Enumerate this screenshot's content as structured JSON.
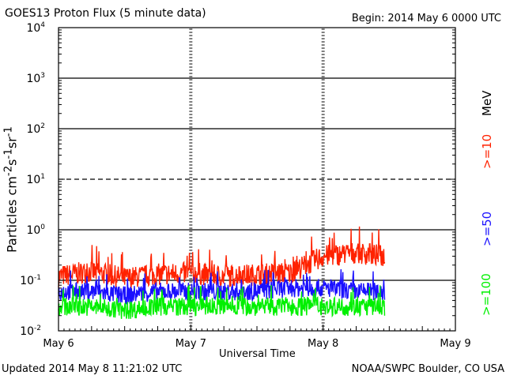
{
  "header": {
    "title": "GOES13 Proton Flux (5 minute data)",
    "begin": "Begin: 2014 May 6 0000 UTC"
  },
  "footer": {
    "updated": "Updated 2014 May  8 11:21:02 UTC",
    "credit": "NOAA/SWPC Boulder, CO USA"
  },
  "colors": {
    "p10": "#ff2200",
    "p50": "#1a10ff",
    "p100": "#00f000",
    "axis": "#000000"
  },
  "chart_data": {
    "type": "line",
    "title": "GOES13 Proton Flux (5 minute data)",
    "xlabel": "Universal Time",
    "ylabel": "Particles cm-2s-1sr-1",
    "yscale": "log",
    "ylim": [
      0.01,
      10000
    ],
    "xlim_days": [
      0,
      3
    ],
    "x_ticks": [
      "May 6",
      "May 7",
      "May 8",
      "May 9"
    ],
    "y_ticks": [
      "10^-2",
      "10^-1",
      "10^0",
      "10^1",
      "10^2",
      "10^3",
      "10^4"
    ],
    "grid": "horizontal at each decade (10^1 dashed)",
    "legend": "right side, rotated",
    "energy_unit": "MeV",
    "series": [
      {
        "name": ">=10",
        "color": "#ff2200",
        "x": [
          "May 6 00:00",
          "May 6 06:00",
          "May 6 12:00",
          "May 6 18:00",
          "May 7 00:00",
          "May 7 06:00",
          "May 7 12:00",
          "May 7 18:00",
          "May 8 00:00",
          "May 8 06:00",
          "May 8 11:15"
        ],
        "values": [
          0.12,
          0.15,
          0.11,
          0.13,
          0.14,
          0.12,
          0.13,
          0.14,
          0.3,
          0.35,
          0.3
        ]
      },
      {
        "name": ">=50",
        "color": "#1a10ff",
        "x": [
          "May 6 00:00",
          "May 6 06:00",
          "May 6 12:00",
          "May 6 18:00",
          "May 7 00:00",
          "May 7 06:00",
          "May 7 12:00",
          "May 7 18:00",
          "May 8 00:00",
          "May 8 06:00",
          "May 8 11:15"
        ],
        "values": [
          0.06,
          0.06,
          0.05,
          0.06,
          0.06,
          0.06,
          0.06,
          0.07,
          0.07,
          0.06,
          0.06
        ]
      },
      {
        "name": ">=100",
        "color": "#00f000",
        "x": [
          "May 6 00:00",
          "May 6 06:00",
          "May 6 12:00",
          "May 6 18:00",
          "May 7 00:00",
          "May 7 06:00",
          "May 7 12:00",
          "May 7 18:00",
          "May 8 00:00",
          "May 8 06:00",
          "May 8 11:15"
        ],
        "values": [
          0.03,
          0.03,
          0.025,
          0.03,
          0.03,
          0.03,
          0.03,
          0.03,
          0.03,
          0.03,
          0.03
        ]
      }
    ]
  }
}
